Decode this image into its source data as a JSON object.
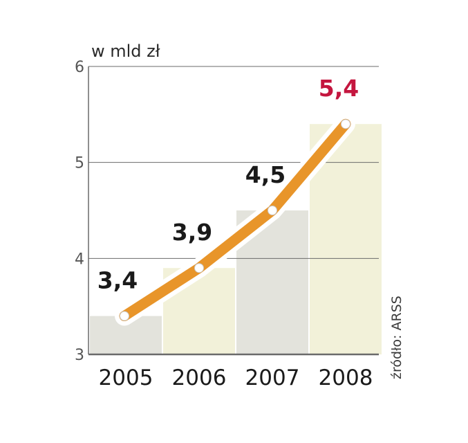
{
  "chart_data": {
    "type": "line",
    "unit_label": "w mld zł",
    "categories": [
      "2005",
      "2006",
      "2007",
      "2008"
    ],
    "values": [
      3.4,
      3.9,
      4.5,
      5.4
    ],
    "value_labels": [
      "3,4",
      "3,9",
      "4,5",
      "5,4"
    ],
    "ylim": [
      3,
      6
    ],
    "yticks": [
      "3",
      "4",
      "5",
      "6"
    ],
    "grid": true,
    "highlight_index": 3,
    "source": "źródło: ARSS",
    "colors": {
      "line": "#e8952a",
      "line_halo": "#ffffff",
      "marker": "#ffffff",
      "label": "#1a1a1a",
      "highlight_label": "#c4163f",
      "bar_grey": "#e3e3dc",
      "bar_cream": "#f2f1d9",
      "grid": "#6a6a6a"
    }
  }
}
